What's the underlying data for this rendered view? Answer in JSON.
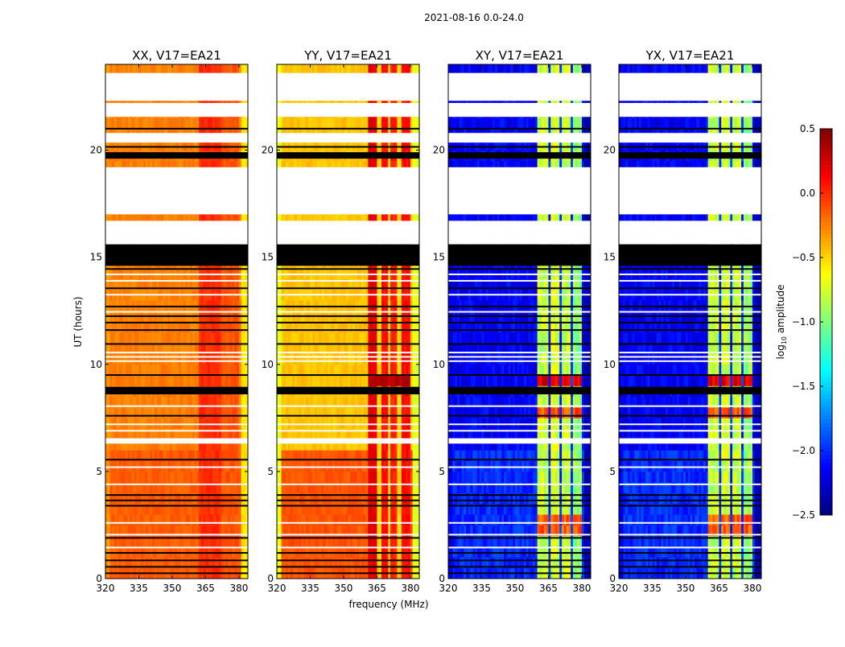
{
  "chart_data": {
    "type": "heatmap",
    "title": "2021-08-16 0.0-24.0",
    "xlabel": "frequency (MHz)",
    "ylabel": "UT (hours)",
    "xlim": [
      320,
      384
    ],
    "ylim": [
      0,
      24
    ],
    "xticks": [
      320,
      335,
      350,
      365,
      380
    ],
    "yticks": [
      0,
      5,
      10,
      15,
      20
    ],
    "colorbar": {
      "label_main": "log",
      "label_sub": "10",
      "label_rest": " amplitude",
      "colormap": "jet",
      "range": [
        -2.5,
        0.5
      ],
      "ticks": [
        "0.5",
        "0.0",
        "−0.5",
        "−1.0",
        "−1.5",
        "−2.0",
        "−2.5"
      ],
      "tick_values": [
        0.5,
        0.0,
        -0.5,
        -1.0,
        -1.5,
        -2.0,
        -2.5
      ]
    },
    "flagged_white_hours": [
      [
        22.3,
        23.6
      ],
      [
        21.55,
        22.2
      ],
      [
        20.35,
        20.8
      ],
      [
        17.0,
        19.2
      ],
      [
        15.6,
        16.7
      ],
      [
        6.3,
        6.55
      ]
    ],
    "flagged_black_hours": [
      [
        14.6,
        15.6
      ],
      [
        8.6,
        8.95
      ],
      [
        19.6,
        19.9
      ]
    ],
    "black_lines_hours": [
      0.25,
      0.55,
      0.85,
      1.2,
      1.9,
      3.4,
      3.65,
      3.9,
      5.55,
      7.6,
      9.5,
      10.95,
      11.6,
      11.95,
      12.25,
      12.7,
      13.55,
      14.45,
      20.15,
      21.0
    ],
    "white_lines_hours": [
      1.45,
      2.05,
      2.6,
      4.4,
      5.2,
      6.9,
      7.2,
      8.05,
      10.15,
      10.35,
      10.55,
      12.45,
      13.25,
      13.9,
      14.2
    ],
    "panels": [
      {
        "title": "XX, V17=EA21",
        "base": -0.25,
        "base_early": -0.15,
        "edge_low": -0.3,
        "edge_high": -0.55,
        "bands": [
          {
            "range": [
              362,
              372
            ],
            "level": 0.0
          },
          {
            "range": [
              372,
              380
            ],
            "level": -0.12
          }
        ],
        "gaps": [],
        "hot_rows": []
      },
      {
        "title": "YY, V17=EA21",
        "base": -0.45,
        "base_early": -0.12,
        "edge_low": -0.7,
        "edge_high": -0.7,
        "bands": [
          {
            "range": [
              361,
              366
            ],
            "level": 0.2
          },
          {
            "range": [
              366,
              370.5
            ],
            "level": 0.08
          },
          {
            "range": [
              370.5,
              375
            ],
            "level": 0.03
          },
          {
            "range": [
              375,
              380
            ],
            "level": 0.1
          }
        ],
        "gaps": [
          366,
          370.5,
          375
        ],
        "hot_rows": [
          [
            8.95,
            9.6,
            0.35
          ]
        ]
      },
      {
        "title": "XY, V17=EA21",
        "base": -2.15,
        "base_early": -2.0,
        "edge_low": -2.2,
        "edge_high": -2.35,
        "bands": [
          {
            "range": [
              360.4,
              364.7
            ],
            "level": -0.8
          },
          {
            "range": [
              365.8,
              370.2
            ],
            "level": -0.75
          },
          {
            "range": [
              371,
              375
            ],
            "level": -0.8
          },
          {
            "range": [
              375.6,
              380
            ],
            "level": -0.95
          }
        ],
        "gaps": [
          365.2,
          370.6,
          375.3
        ],
        "hot_rows": [
          [
            8.95,
            9.7,
            0.2
          ],
          [
            7.3,
            7.9,
            -0.1
          ],
          [
            2.2,
            2.8,
            -0.15
          ]
        ]
      },
      {
        "title": "YX, V17=EA21",
        "base": -2.15,
        "base_early": -2.0,
        "edge_low": -2.2,
        "edge_high": -2.35,
        "bands": [
          {
            "range": [
              360.4,
              364.7
            ],
            "level": -0.8
          },
          {
            "range": [
              365.8,
              370.2
            ],
            "level": -0.75
          },
          {
            "range": [
              371,
              375
            ],
            "level": -0.8
          },
          {
            "range": [
              375.6,
              380
            ],
            "level": -0.95
          }
        ],
        "gaps": [
          365.2,
          370.6,
          375.3
        ],
        "hot_rows": [
          [
            8.95,
            9.7,
            0.2
          ],
          [
            7.3,
            7.9,
            -0.1
          ],
          [
            2.2,
            2.8,
            -0.15
          ]
        ]
      }
    ]
  }
}
